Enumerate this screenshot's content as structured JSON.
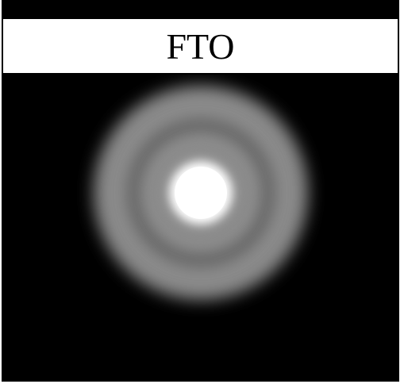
{
  "label": {
    "text": "FTO"
  },
  "colors": {
    "background": "#000000",
    "label_box": "#ffffff",
    "label_text": "#000000",
    "pattern_center": "#ffffff",
    "pattern_ring": "#9a9a9a"
  }
}
